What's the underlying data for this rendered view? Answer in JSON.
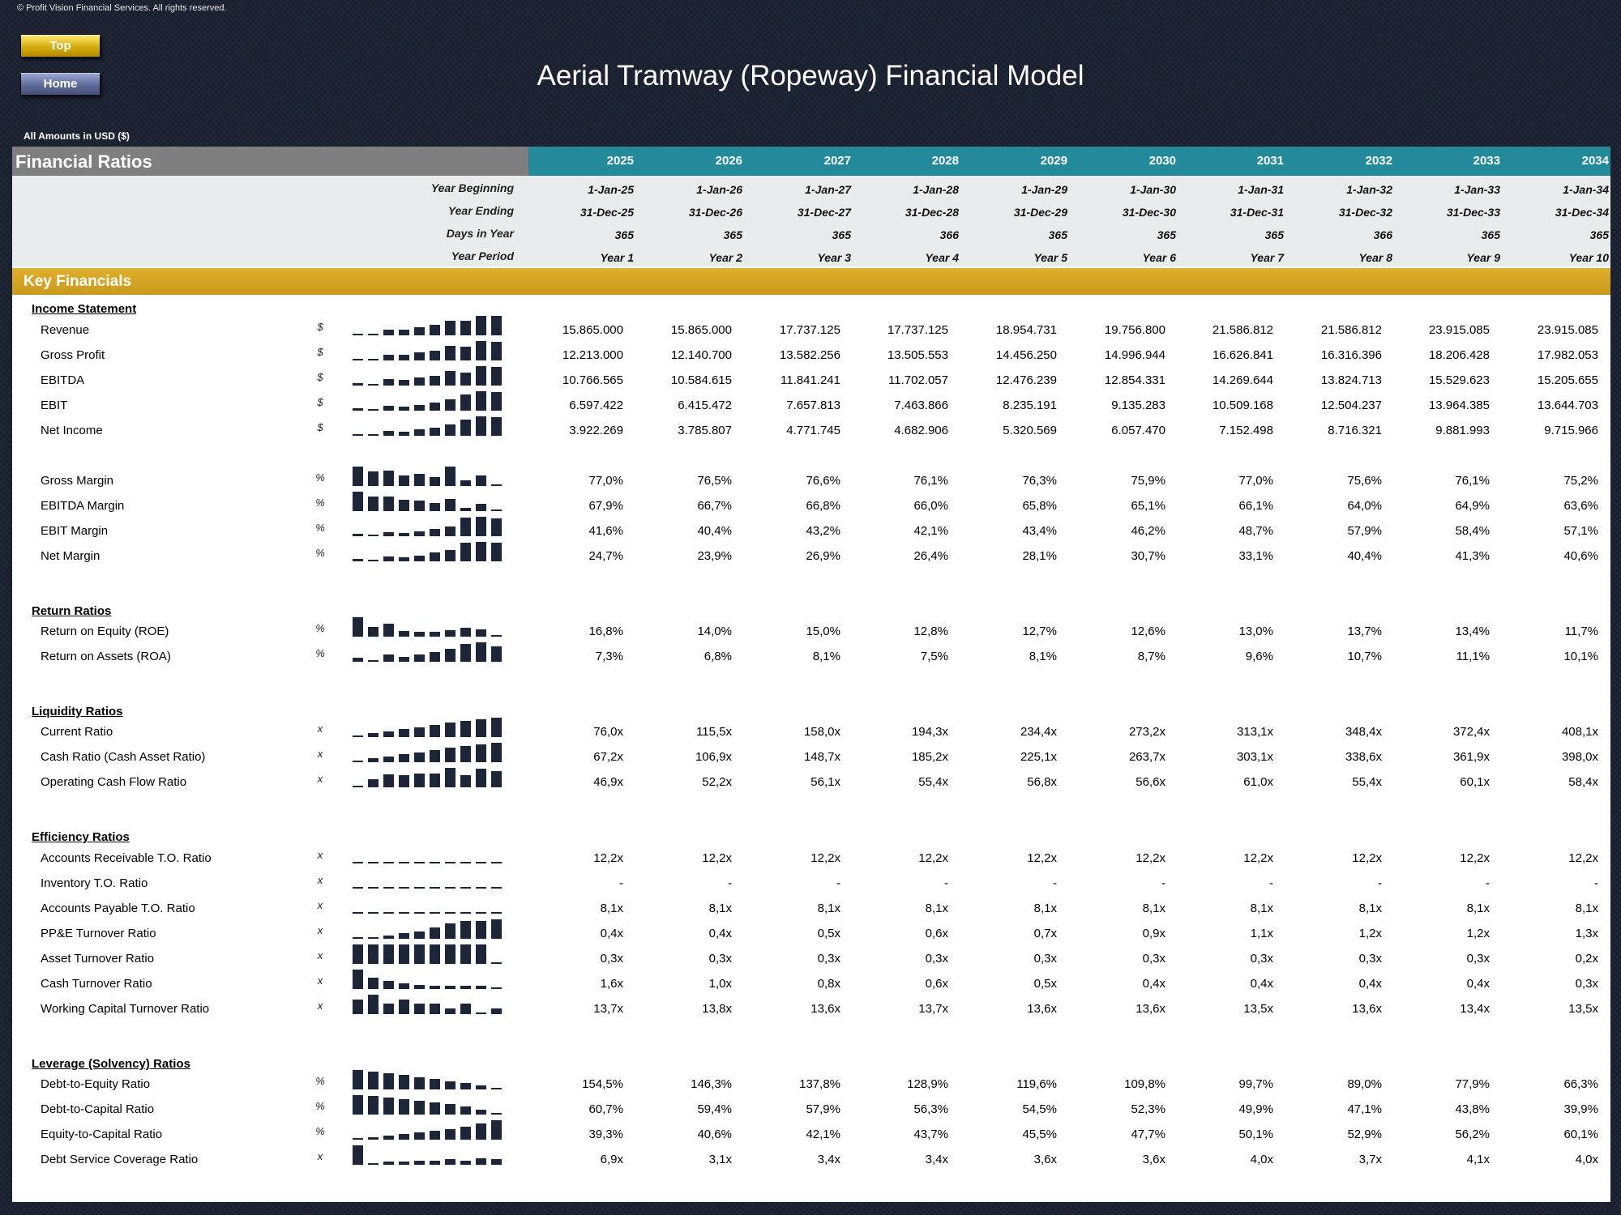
{
  "copyright": "© Profit Vision Financial Services. All rights reserved.",
  "nav": {
    "top_label": "Top",
    "home_label": "Home"
  },
  "title": "Aerial Tramway (Ropeway) Financial Model",
  "amounts_note": "All Amounts in  USD ($)",
  "sheet_title": "Financial Ratios",
  "years": [
    "2025",
    "2026",
    "2027",
    "2028",
    "2029",
    "2030",
    "2031",
    "2032",
    "2033",
    "2034"
  ],
  "header_rows": [
    {
      "label": "Year Beginning",
      "values": [
        "1-Jan-25",
        "1-Jan-26",
        "1-Jan-27",
        "1-Jan-28",
        "1-Jan-29",
        "1-Jan-30",
        "1-Jan-31",
        "1-Jan-32",
        "1-Jan-33",
        "1-Jan-34"
      ]
    },
    {
      "label": "Year Ending",
      "values": [
        "31-Dec-25",
        "31-Dec-26",
        "31-Dec-27",
        "31-Dec-28",
        "31-Dec-29",
        "31-Dec-30",
        "31-Dec-31",
        "31-Dec-32",
        "31-Dec-33",
        "31-Dec-34"
      ]
    },
    {
      "label": "Days in Year",
      "values": [
        "365",
        "365",
        "365",
        "366",
        "365",
        "365",
        "365",
        "366",
        "365",
        "365"
      ]
    },
    {
      "label": "Year Period",
      "values": [
        "Year 1",
        "Year 2",
        "Year 3",
        "Year 4",
        "Year 5",
        "Year 6",
        "Year 7",
        "Year 8",
        "Year 9",
        "Year 10"
      ]
    }
  ],
  "band_label": "Key Financials",
  "sections": [
    {
      "title": "Income Statement",
      "rows": [
        {
          "label": "Revenue",
          "unit": "$",
          "values": [
            "15.865.000",
            "15.865.000",
            "17.737.125",
            "17.737.125",
            "18.954.731",
            "19.756.800",
            "21.586.812",
            "21.586.812",
            "23.915.085",
            "23.915.085"
          ]
        },
        {
          "label": "Gross Profit",
          "unit": "$",
          "values": [
            "12.213.000",
            "12.140.700",
            "13.582.256",
            "13.505.553",
            "14.456.250",
            "14.996.944",
            "16.626.841",
            "16.316.396",
            "18.206.428",
            "17.982.053"
          ]
        },
        {
          "label": "EBITDA",
          "unit": "$",
          "values": [
            "10.766.565",
            "10.584.615",
            "11.841.241",
            "11.702.057",
            "12.476.239",
            "12.854.331",
            "14.269.644",
            "13.824.713",
            "15.529.623",
            "15.205.655"
          ]
        },
        {
          "label": "EBIT",
          "unit": "$",
          "values": [
            "6.597.422",
            "6.415.472",
            "7.657.813",
            "7.463.866",
            "8.235.191",
            "9.135.283",
            "10.509.168",
            "12.504.237",
            "13.964.385",
            "13.644.703"
          ]
        },
        {
          "label": "Net Income",
          "unit": "$",
          "values": [
            "3.922.269",
            "3.785.807",
            "4.771.745",
            "4.682.906",
            "5.320.569",
            "6.057.470",
            "7.152.498",
            "8.716.321",
            "9.881.993",
            "9.715.966"
          ]
        }
      ]
    },
    {
      "title": "",
      "rows": [
        {
          "label": "Gross Margin",
          "unit": "%",
          "values": [
            "77,0%",
            "76,5%",
            "76,6%",
            "76,1%",
            "76,3%",
            "75,9%",
            "77,0%",
            "75,6%",
            "76,1%",
            "75,2%"
          ]
        },
        {
          "label": "EBITDA Margin",
          "unit": "%",
          "values": [
            "67,9%",
            "66,7%",
            "66,8%",
            "66,0%",
            "65,8%",
            "65,1%",
            "66,1%",
            "64,0%",
            "64,9%",
            "63,6%"
          ]
        },
        {
          "label": "EBIT Margin",
          "unit": "%",
          "values": [
            "41,6%",
            "40,4%",
            "43,2%",
            "42,1%",
            "43,4%",
            "46,2%",
            "48,7%",
            "57,9%",
            "58,4%",
            "57,1%"
          ]
        },
        {
          "label": "Net Margin",
          "unit": "%",
          "values": [
            "24,7%",
            "23,9%",
            "26,9%",
            "26,4%",
            "28,1%",
            "30,7%",
            "33,1%",
            "40,4%",
            "41,3%",
            "40,6%"
          ]
        }
      ]
    },
    {
      "title": "Return Ratios",
      "rows": [
        {
          "label": "Return on Equity (ROE)",
          "unit": "%",
          "values": [
            "16,8%",
            "14,0%",
            "15,0%",
            "12,8%",
            "12,7%",
            "12,6%",
            "13,0%",
            "13,7%",
            "13,4%",
            "11,7%"
          ]
        },
        {
          "label": "Return on Assets (ROA)",
          "unit": "%",
          "values": [
            "7,3%",
            "6,8%",
            "8,1%",
            "7,5%",
            "8,1%",
            "8,7%",
            "9,6%",
            "10,7%",
            "11,1%",
            "10,1%"
          ]
        }
      ]
    },
    {
      "title": "Liquidity Ratios",
      "rows": [
        {
          "label": "Current Ratio",
          "unit": "x",
          "values": [
            "76,0x",
            "115,5x",
            "158,0x",
            "194,3x",
            "234,4x",
            "273,2x",
            "313,1x",
            "348,4x",
            "372,4x",
            "408,1x"
          ]
        },
        {
          "label": "Cash Ratio (Cash Asset Ratio)",
          "unit": "x",
          "values": [
            "67,2x",
            "106,9x",
            "148,7x",
            "185,2x",
            "225,1x",
            "263,7x",
            "303,1x",
            "338,6x",
            "361,9x",
            "398,0x"
          ]
        },
        {
          "label": "Operating Cash Flow Ratio",
          "unit": "x",
          "values": [
            "46,9x",
            "52,2x",
            "56,1x",
            "55,4x",
            "56,8x",
            "56,6x",
            "61,0x",
            "55,4x",
            "60,1x",
            "58,4x"
          ]
        }
      ]
    },
    {
      "title": "Efficiency Ratios",
      "rows": [
        {
          "label": "Accounts Receivable T.O. Ratio",
          "unit": "x",
          "values": [
            "12,2x",
            "12,2x",
            "12,2x",
            "12,2x",
            "12,2x",
            "12,2x",
            "12,2x",
            "12,2x",
            "12,2x",
            "12,2x"
          ]
        },
        {
          "label": "Inventory T.O. Ratio",
          "unit": "x",
          "values": [
            "-",
            "-",
            "-",
            "-",
            "-",
            "-",
            "-",
            "-",
            "-",
            "-"
          ]
        },
        {
          "label": "Accounts Payable T.O. Ratio",
          "unit": "x",
          "values": [
            "8,1x",
            "8,1x",
            "8,1x",
            "8,1x",
            "8,1x",
            "8,1x",
            "8,1x",
            "8,1x",
            "8,1x",
            "8,1x"
          ]
        },
        {
          "label": "PP&E Turnover Ratio",
          "unit": "x",
          "values": [
            "0,4x",
            "0,4x",
            "0,5x",
            "0,6x",
            "0,7x",
            "0,9x",
            "1,1x",
            "1,2x",
            "1,2x",
            "1,3x"
          ]
        },
        {
          "label": "Asset Turnover Ratio",
          "unit": "x",
          "values": [
            "0,3x",
            "0,3x",
            "0,3x",
            "0,3x",
            "0,3x",
            "0,3x",
            "0,3x",
            "0,3x",
            "0,3x",
            "0,2x"
          ]
        },
        {
          "label": "Cash Turnover Ratio",
          "unit": "x",
          "values": [
            "1,6x",
            "1,0x",
            "0,8x",
            "0,6x",
            "0,5x",
            "0,4x",
            "0,4x",
            "0,4x",
            "0,4x",
            "0,3x"
          ]
        },
        {
          "label": "Working Capital Turnover Ratio",
          "unit": "x",
          "values": [
            "13,7x",
            "13,8x",
            "13,6x",
            "13,7x",
            "13,6x",
            "13,6x",
            "13,5x",
            "13,6x",
            "13,4x",
            "13,5x"
          ]
        }
      ]
    },
    {
      "title": "Leverage (Solvency) Ratios",
      "rows": [
        {
          "label": "Debt-to-Equity Ratio",
          "unit": "%",
          "values": [
            "154,5%",
            "146,3%",
            "137,8%",
            "128,9%",
            "119,6%",
            "109,8%",
            "99,7%",
            "89,0%",
            "77,9%",
            "66,3%"
          ]
        },
        {
          "label": "Debt-to-Capital Ratio",
          "unit": "%",
          "values": [
            "60,7%",
            "59,4%",
            "57,9%",
            "56,3%",
            "54,5%",
            "52,3%",
            "49,9%",
            "47,1%",
            "43,8%",
            "39,9%"
          ]
        },
        {
          "label": "Equity-to-Capital Ratio",
          "unit": "%",
          "values": [
            "39,3%",
            "40,6%",
            "42,1%",
            "43,7%",
            "45,5%",
            "47,7%",
            "50,1%",
            "52,9%",
            "56,2%",
            "60,1%"
          ]
        },
        {
          "label": "Debt Service Coverage Ratio",
          "unit": "x",
          "values": [
            "6,9x",
            "3,1x",
            "3,4x",
            "3,4x",
            "3,6x",
            "3,6x",
            "4,0x",
            "3,7x",
            "4,1x",
            "4,0x"
          ]
        }
      ]
    }
  ],
  "colors": {
    "year_header": "#238a9b",
    "band": "#d4a423",
    "title_band": "#7f7f7f",
    "spark_bar": "#1c2638"
  }
}
